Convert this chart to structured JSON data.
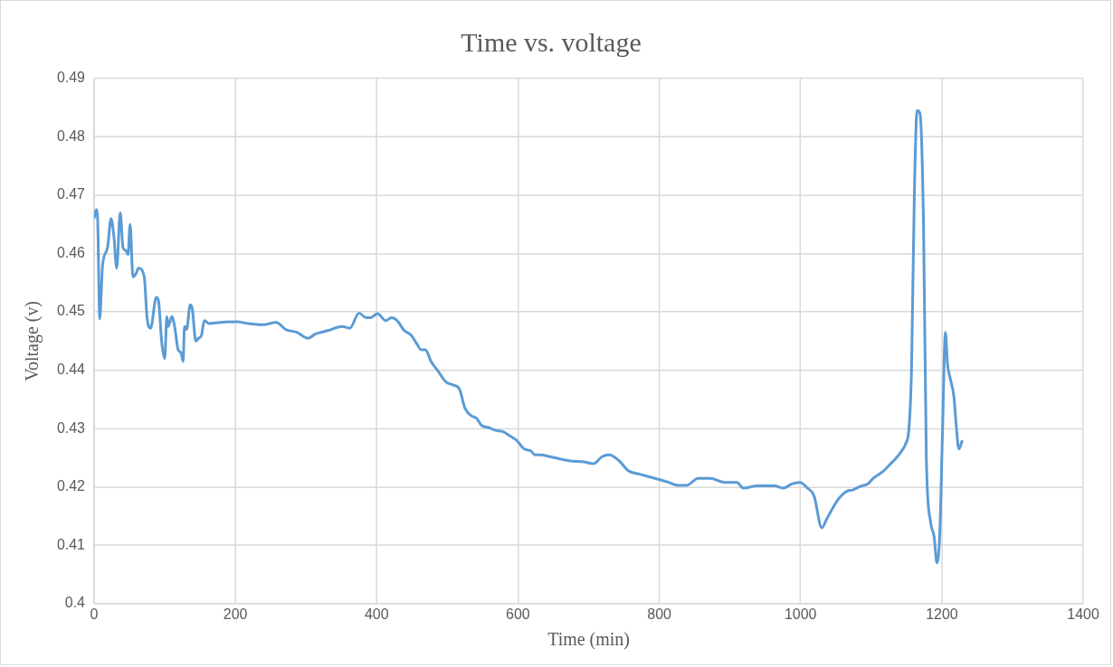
{
  "chart_data": {
    "type": "line",
    "title": "Time vs. voltage",
    "xlabel": "Time (min)",
    "ylabel": "Voltage (v)",
    "xlim": [
      0,
      1400
    ],
    "xticks": [
      0,
      200,
      400,
      600,
      800,
      1000,
      1200,
      1400
    ],
    "ylim": [
      0.4,
      0.49
    ],
    "yticks": [
      0.4,
      0.41,
      0.42,
      0.43,
      0.44,
      0.45,
      0.46,
      0.47,
      0.48,
      0.49
    ],
    "grid": true,
    "legend": false,
    "marker": "none",
    "line_style": "solid",
    "series": [
      {
        "color": "#5b9bd5",
        "x": [
          0,
          3,
          5,
          8,
          12,
          19,
          24,
          28,
          32,
          37,
          41,
          45,
          48,
          51,
          55,
          59,
          63,
          71,
          75,
          80,
          88,
          91,
          96,
          100,
          103,
          105,
          110,
          114,
          119,
          123,
          126,
          128,
          131,
          136,
          139,
          144,
          148,
          152,
          156,
          163,
          178,
          202,
          218,
          239,
          258,
          271,
          287,
          303,
          313,
          331,
          351,
          362,
          375,
          385,
          391,
          401,
          413,
          421,
          429,
          439,
          449,
          457,
          463,
          469,
          477,
          486,
          498,
          508,
          517,
          525,
          534,
          541,
          549,
          558,
          568,
          578,
          588,
          598,
          609,
          618,
          624,
          632,
          645,
          672,
          693,
          707,
          719,
          729,
          743,
          756,
          772,
          793,
          813,
          826,
          839,
          855,
          872,
          892,
          910,
          919,
          939,
          963,
          976,
          987,
          999,
          1010,
          1019,
          1030,
          1037,
          1046,
          1054,
          1066,
          1074,
          1086,
          1095,
          1103,
          1115,
          1126,
          1137,
          1145,
          1149,
          1153,
          1157,
          1161,
          1165,
          1169,
          1174,
          1178,
          1184,
          1189,
          1193,
          1197,
          1201,
          1205,
          1208,
          1212,
          1217,
          1220,
          1224,
          1229
        ],
        "values": [
          0.466,
          0.4675,
          0.466,
          0.4488,
          0.458,
          0.461,
          0.466,
          0.463,
          0.4575,
          0.467,
          0.461,
          0.4605,
          0.4598,
          0.465,
          0.456,
          0.4565,
          0.4575,
          0.456,
          0.449,
          0.4472,
          0.4525,
          0.452,
          0.4445,
          0.442,
          0.4492,
          0.4475,
          0.4492,
          0.4475,
          0.4435,
          0.443,
          0.4415,
          0.4475,
          0.447,
          0.4512,
          0.4505,
          0.445,
          0.4455,
          0.446,
          0.4485,
          0.448,
          0.4482,
          0.4483,
          0.448,
          0.4478,
          0.4482,
          0.447,
          0.4465,
          0.4455,
          0.4462,
          0.4468,
          0.4475,
          0.4472,
          0.4498,
          0.449,
          0.449,
          0.4497,
          0.4485,
          0.449,
          0.4485,
          0.4468,
          0.446,
          0.4445,
          0.4435,
          0.4435,
          0.4415,
          0.44,
          0.438,
          0.4375,
          0.4368,
          0.4335,
          0.4322,
          0.4318,
          0.4305,
          0.4302,
          0.4297,
          0.4295,
          0.4288,
          0.428,
          0.4265,
          0.4262,
          0.4255,
          0.4255,
          0.4252,
          0.4245,
          0.4243,
          0.424,
          0.4252,
          0.4255,
          0.4245,
          0.4228,
          0.4222,
          0.4215,
          0.4208,
          0.4203,
          0.4203,
          0.4215,
          0.4215,
          0.4208,
          0.4208,
          0.4198,
          0.4202,
          0.4202,
          0.4198,
          0.4205,
          0.4208,
          0.4198,
          0.4185,
          0.413,
          0.4145,
          0.4165,
          0.418,
          0.4193,
          0.4195,
          0.4202,
          0.4205,
          0.4215,
          0.4225,
          0.4238,
          0.4252,
          0.4265,
          0.4275,
          0.4295,
          0.44,
          0.47,
          0.4845,
          0.484,
          0.465,
          0.425,
          0.414,
          0.4115,
          0.407,
          0.412,
          0.43,
          0.4465,
          0.441,
          0.4385,
          0.4355,
          0.431,
          0.4265,
          0.428
        ]
      }
    ]
  }
}
